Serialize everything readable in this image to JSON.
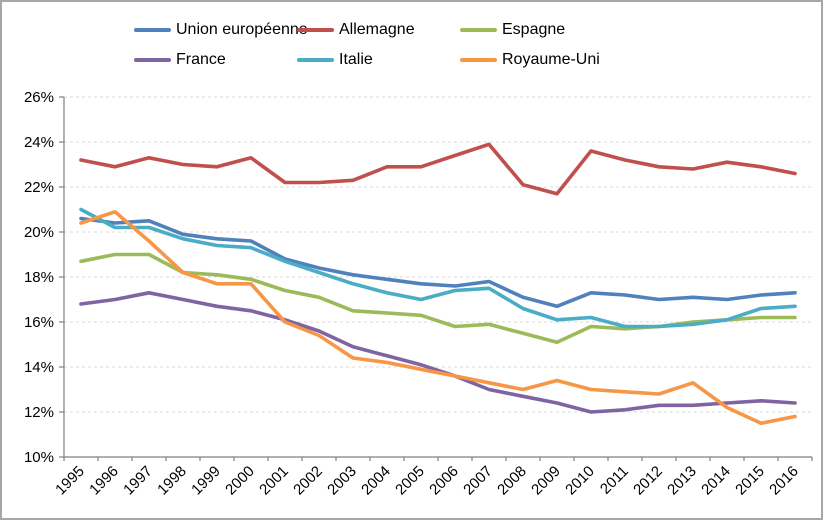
{
  "frame": {
    "border_color": "#a6a6a6",
    "background": "#ffffff"
  },
  "chart_data": {
    "type": "line",
    "title": "",
    "xlabel": "",
    "ylabel": "",
    "x": [
      "1995",
      "1996",
      "1997",
      "1998",
      "1999",
      "2000",
      "2001",
      "2002",
      "2003",
      "2004",
      "2005",
      "2006",
      "2007",
      "2008",
      "2009",
      "2010",
      "2011",
      "2012",
      "2013",
      "2014",
      "2015",
      "2016"
    ],
    "series": [
      {
        "name": "Union européenne",
        "color": "#4F81BD",
        "values": [
          20.6,
          20.4,
          20.5,
          19.9,
          19.7,
          19.6,
          18.8,
          18.4,
          18.1,
          17.9,
          17.7,
          17.6,
          17.8,
          17.1,
          16.7,
          17.3,
          17.2,
          17.0,
          17.1,
          17.0,
          17.2,
          17.3
        ]
      },
      {
        "name": "Allemagne",
        "color": "#C0504D",
        "values": [
          23.2,
          22.9,
          23.3,
          23.0,
          22.9,
          23.3,
          22.2,
          22.2,
          22.3,
          22.9,
          22.9,
          23.4,
          23.9,
          22.1,
          21.7,
          23.6,
          23.2,
          22.9,
          22.8,
          23.1,
          22.9,
          22.6
        ]
      },
      {
        "name": "Espagne",
        "color": "#9BBB59",
        "values": [
          18.7,
          19.0,
          19.0,
          18.2,
          18.1,
          17.9,
          17.4,
          17.1,
          16.5,
          16.4,
          16.3,
          15.8,
          15.9,
          15.5,
          15.1,
          15.8,
          15.7,
          15.8,
          16.0,
          16.1,
          16.2,
          16.2
        ]
      },
      {
        "name": "France",
        "color": "#8064A2",
        "values": [
          16.8,
          17.0,
          17.3,
          17.0,
          16.7,
          16.5,
          16.1,
          15.6,
          14.9,
          14.5,
          14.1,
          13.6,
          13.0,
          12.7,
          12.4,
          12.0,
          12.1,
          12.3,
          12.3,
          12.4,
          12.5,
          12.4
        ]
      },
      {
        "name": "Italie",
        "color": "#4BACC6",
        "values": [
          21.0,
          20.2,
          20.2,
          19.7,
          19.4,
          19.3,
          18.7,
          18.2,
          17.7,
          17.3,
          17.0,
          17.4,
          17.5,
          16.6,
          16.1,
          16.2,
          15.8,
          15.8,
          15.9,
          16.1,
          16.6,
          16.7
        ]
      },
      {
        "name": "Royaume-Uni",
        "color": "#F79646",
        "values": [
          20.4,
          20.9,
          19.6,
          18.2,
          17.7,
          17.7,
          16.0,
          15.4,
          14.4,
          14.2,
          13.9,
          13.6,
          13.3,
          13.0,
          13.4,
          13.0,
          12.9,
          12.8,
          13.3,
          12.2,
          11.5,
          11.8
        ]
      }
    ],
    "ylim": [
      10,
      26
    ],
    "y_tick_step": 2,
    "y_ticks": [
      "10%",
      "12%",
      "14%",
      "16%",
      "18%",
      "20%",
      "22%",
      "24%",
      "26%"
    ],
    "grid": true,
    "gridline_color": "#D9D9D9",
    "axis_color": "#808080",
    "legend_position": "top",
    "legend_rows": [
      [
        "Union européenne",
        "Allemagne",
        "Espagne"
      ],
      [
        "France",
        "Italie",
        "Royaume-Uni"
      ]
    ]
  }
}
